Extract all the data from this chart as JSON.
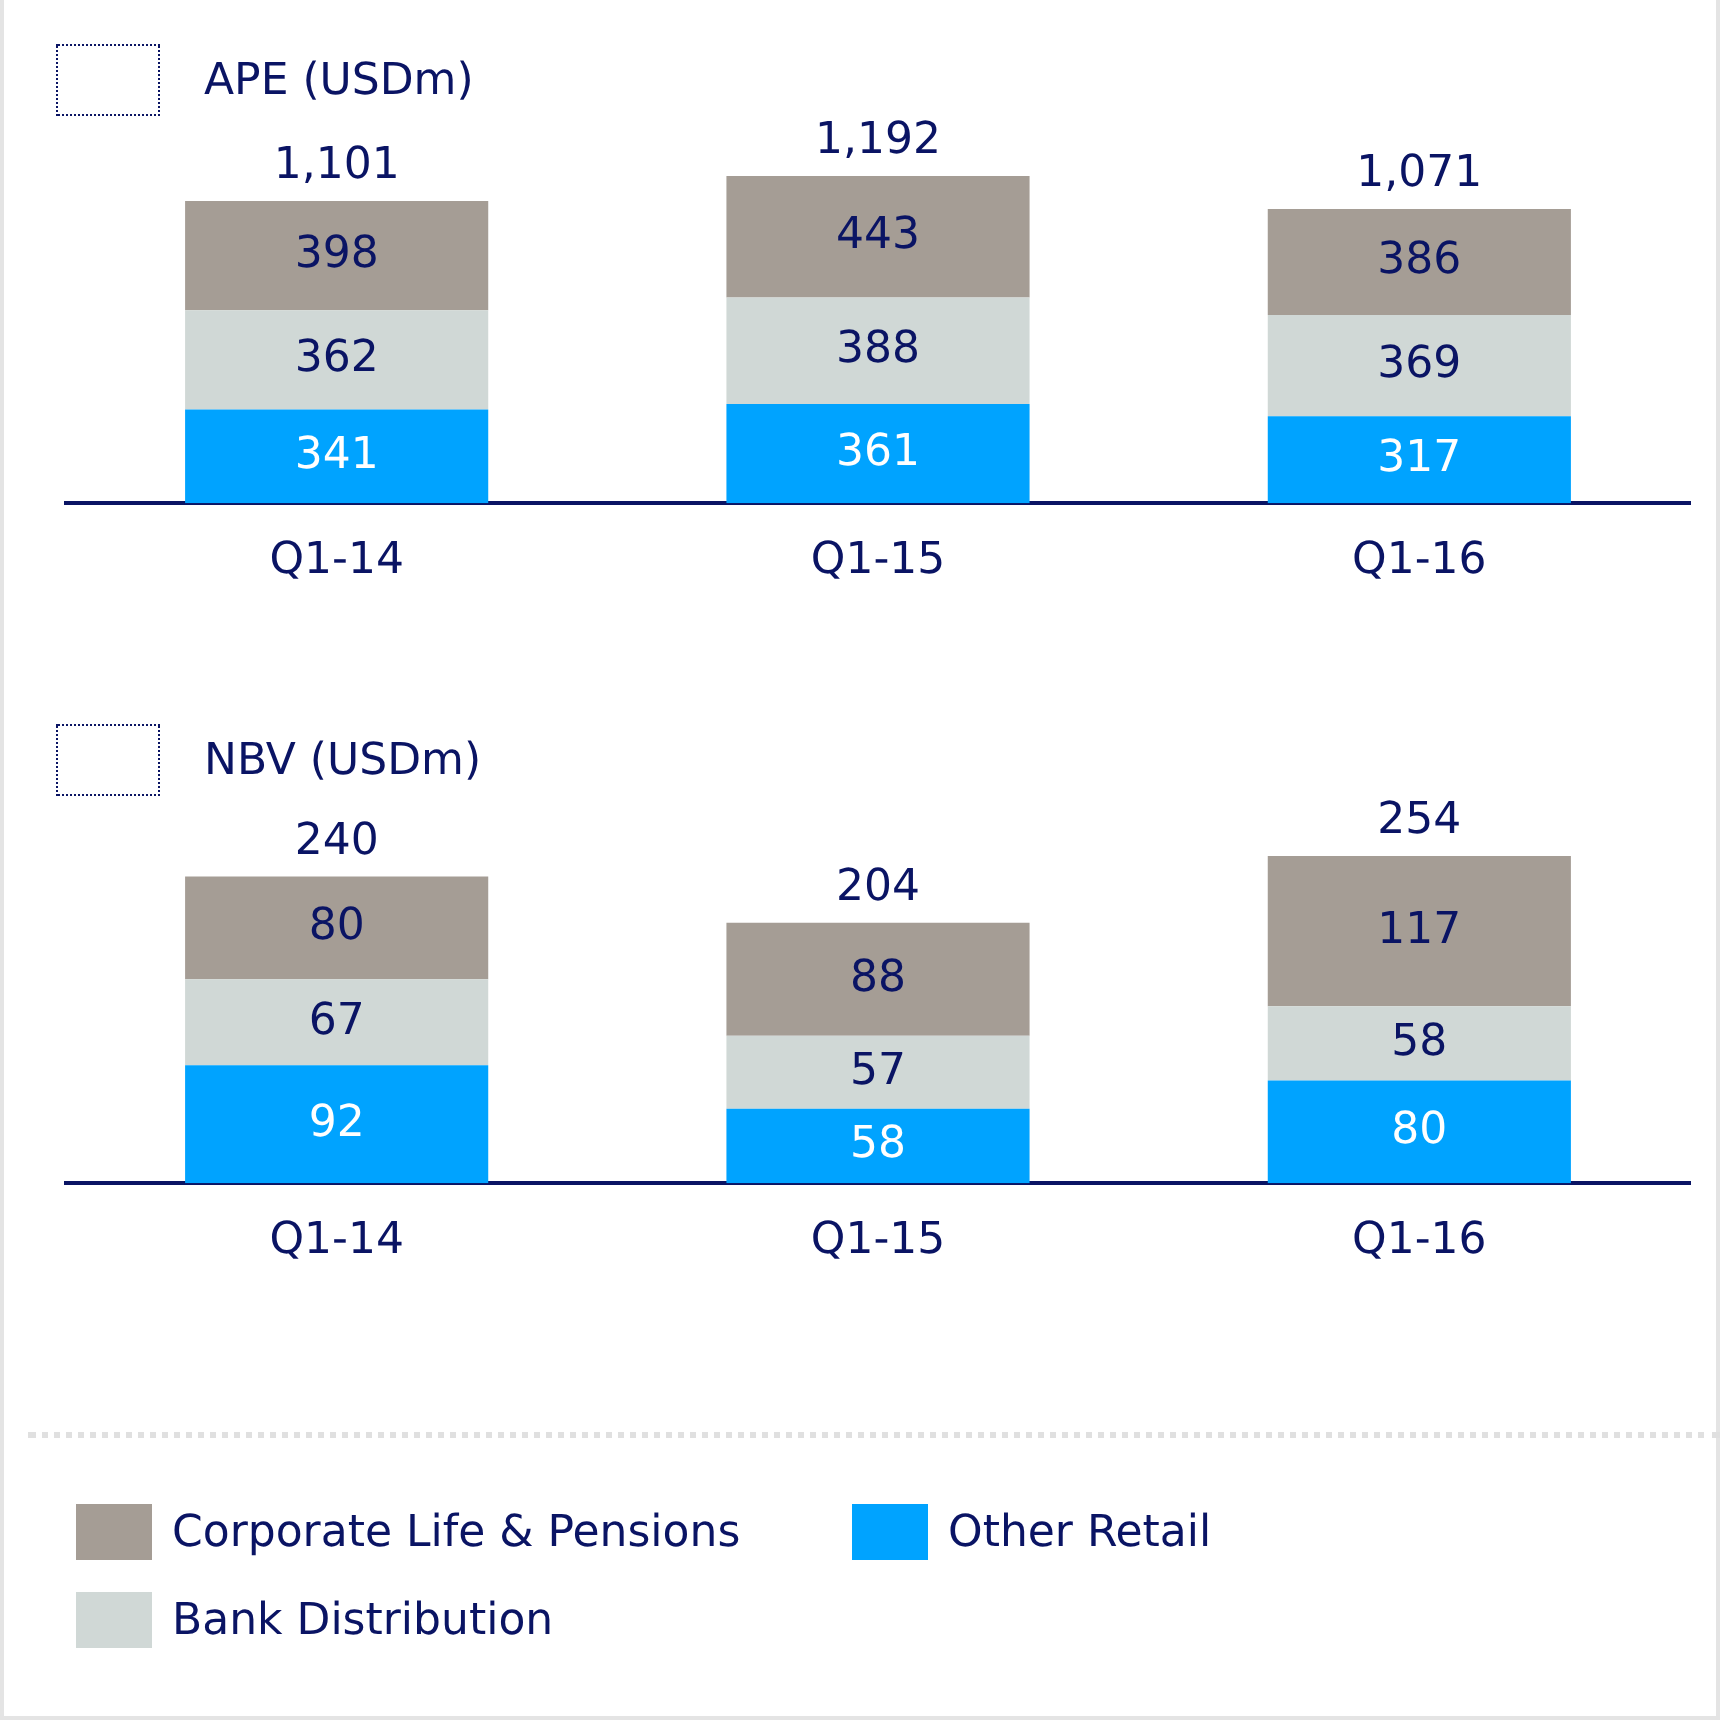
{
  "chart_data": [
    {
      "type": "bar",
      "title": "APE (USDm)",
      "categories": [
        "Q1-14",
        "Q1-15",
        "Q1-16"
      ],
      "stacked": true,
      "data_labels": true,
      "totals": [
        "1,101",
        "1,192",
        "1,071"
      ],
      "legend": "bottom",
      "series": [
        {
          "name": "Other Retail",
          "color": "#00a3ff",
          "values": [
            341,
            361,
            317
          ]
        },
        {
          "name": "Bank Distribution",
          "color": "#d0d8d6",
          "values": [
            362,
            388,
            369
          ]
        },
        {
          "name": "Corporate Life & Pensions",
          "color": "#a59d95",
          "values": [
            398,
            443,
            386
          ]
        }
      ]
    },
    {
      "type": "bar",
      "title": "NBV (USDm)",
      "categories": [
        "Q1-14",
        "Q1-15",
        "Q1-16"
      ],
      "stacked": true,
      "data_labels": true,
      "totals": [
        "240",
        "204",
        "254"
      ],
      "series": [
        {
          "color": "#00a3ff",
          "values": [
            92,
            58,
            80
          ]
        },
        {
          "color": "#d0d8d6",
          "values": [
            67,
            57,
            58
          ]
        },
        {
          "color": "#a59d95",
          "values": [
            80,
            88,
            117
          ]
        }
      ]
    }
  ]
}
